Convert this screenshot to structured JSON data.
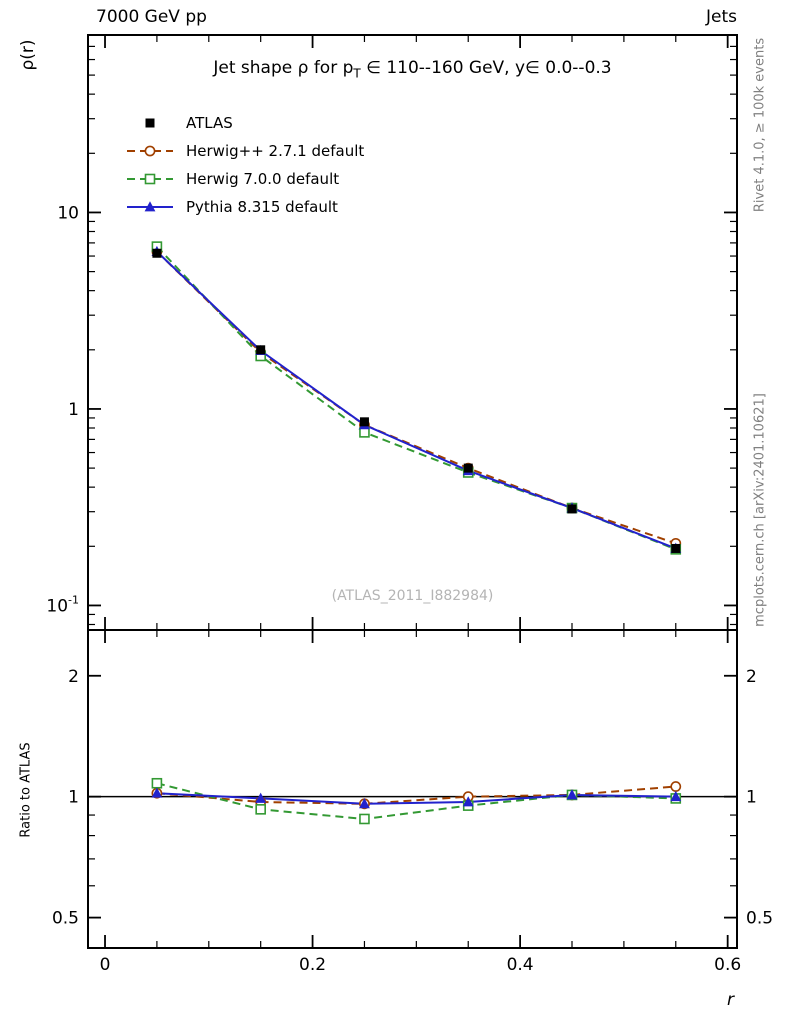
{
  "header": {
    "left": "7000 GeV pp",
    "right": "Jets"
  },
  "side_texts": {
    "top_right": "Rivet 4.1.0, ≥ 100k events",
    "bottom_right": "mcplots.cern.ch [arXiv:2401.10621]"
  },
  "watermark": "(ATLAS_2011_I882984)",
  "chart_data": {
    "type": "line",
    "title": "Jet shape ρ for p_T ∈ 110--160 GeV, y∈ 0.0--0.3",
    "title_parts": {
      "pre": "Jet shape ρ for p",
      "sub": "T",
      "post": " ∈ 110--160 GeV, y∈ 0.0--0.3"
    },
    "axes": {
      "main_ylabel": "ρ(r)",
      "ratio_ylabel": "Ratio to ATLAS",
      "xlabel": "r"
    },
    "x": [
      0.05,
      0.15,
      0.25,
      0.35,
      0.45,
      0.55
    ],
    "xlim": [
      -0.0164,
      0.609
    ],
    "main_ylog": true,
    "main_ylim": [
      0.075,
      80
    ],
    "ratio_ylog": true,
    "ratio_ylim": [
      0.42,
      2.6
    ],
    "x_ticks": [
      {
        "v": 0,
        "label": "0"
      },
      {
        "v": 0.2,
        "label": "0.2"
      },
      {
        "v": 0.4,
        "label": "0.4"
      },
      {
        "v": 0.6,
        "label": "0.6"
      }
    ],
    "main_y_ticks": [
      {
        "v": 10,
        "label": "10",
        "sup": ""
      },
      {
        "v": 1,
        "label": "1",
        "sup": ""
      },
      {
        "v": 0.1,
        "label": "10",
        "sup": "-1"
      }
    ],
    "ratio_y_ticks": [
      {
        "v": 2,
        "label": "2"
      },
      {
        "v": 1,
        "label": "1"
      },
      {
        "v": 0.5,
        "label": "0.5"
      }
    ],
    "legend_position": "top-left-inside",
    "series": [
      {
        "name": "ATLAS",
        "color": "#000000",
        "marker": "square-filled",
        "line": "none",
        "values": [
          6.2,
          2.0,
          0.86,
          0.5,
          0.31,
          0.195
        ],
        "ratio": null
      },
      {
        "name": "Herwig++ 2.7.1 default",
        "color": "#a04000",
        "marker": "circle-open",
        "line": "dashed",
        "values": [
          6.32,
          1.94,
          0.83,
          0.5,
          0.313,
          0.207
        ],
        "ratio": [
          1.02,
          0.97,
          0.96,
          1.0,
          1.01,
          1.06
        ]
      },
      {
        "name": "Herwig 7.0.0 default",
        "color": "#339933",
        "marker": "square-open",
        "line": "dashed",
        "values": [
          6.7,
          1.86,
          0.76,
          0.475,
          0.313,
          0.193
        ],
        "ratio": [
          1.08,
          0.93,
          0.88,
          0.95,
          1.01,
          0.99
        ]
      },
      {
        "name": "Pythia 8.315 default",
        "color": "#2222cc",
        "marker": "triangle-filled",
        "line": "solid",
        "values": [
          6.32,
          1.98,
          0.83,
          0.485,
          0.313,
          0.195
        ],
        "ratio": [
          1.02,
          0.99,
          0.96,
          0.97,
          1.01,
          1.0
        ]
      }
    ]
  }
}
